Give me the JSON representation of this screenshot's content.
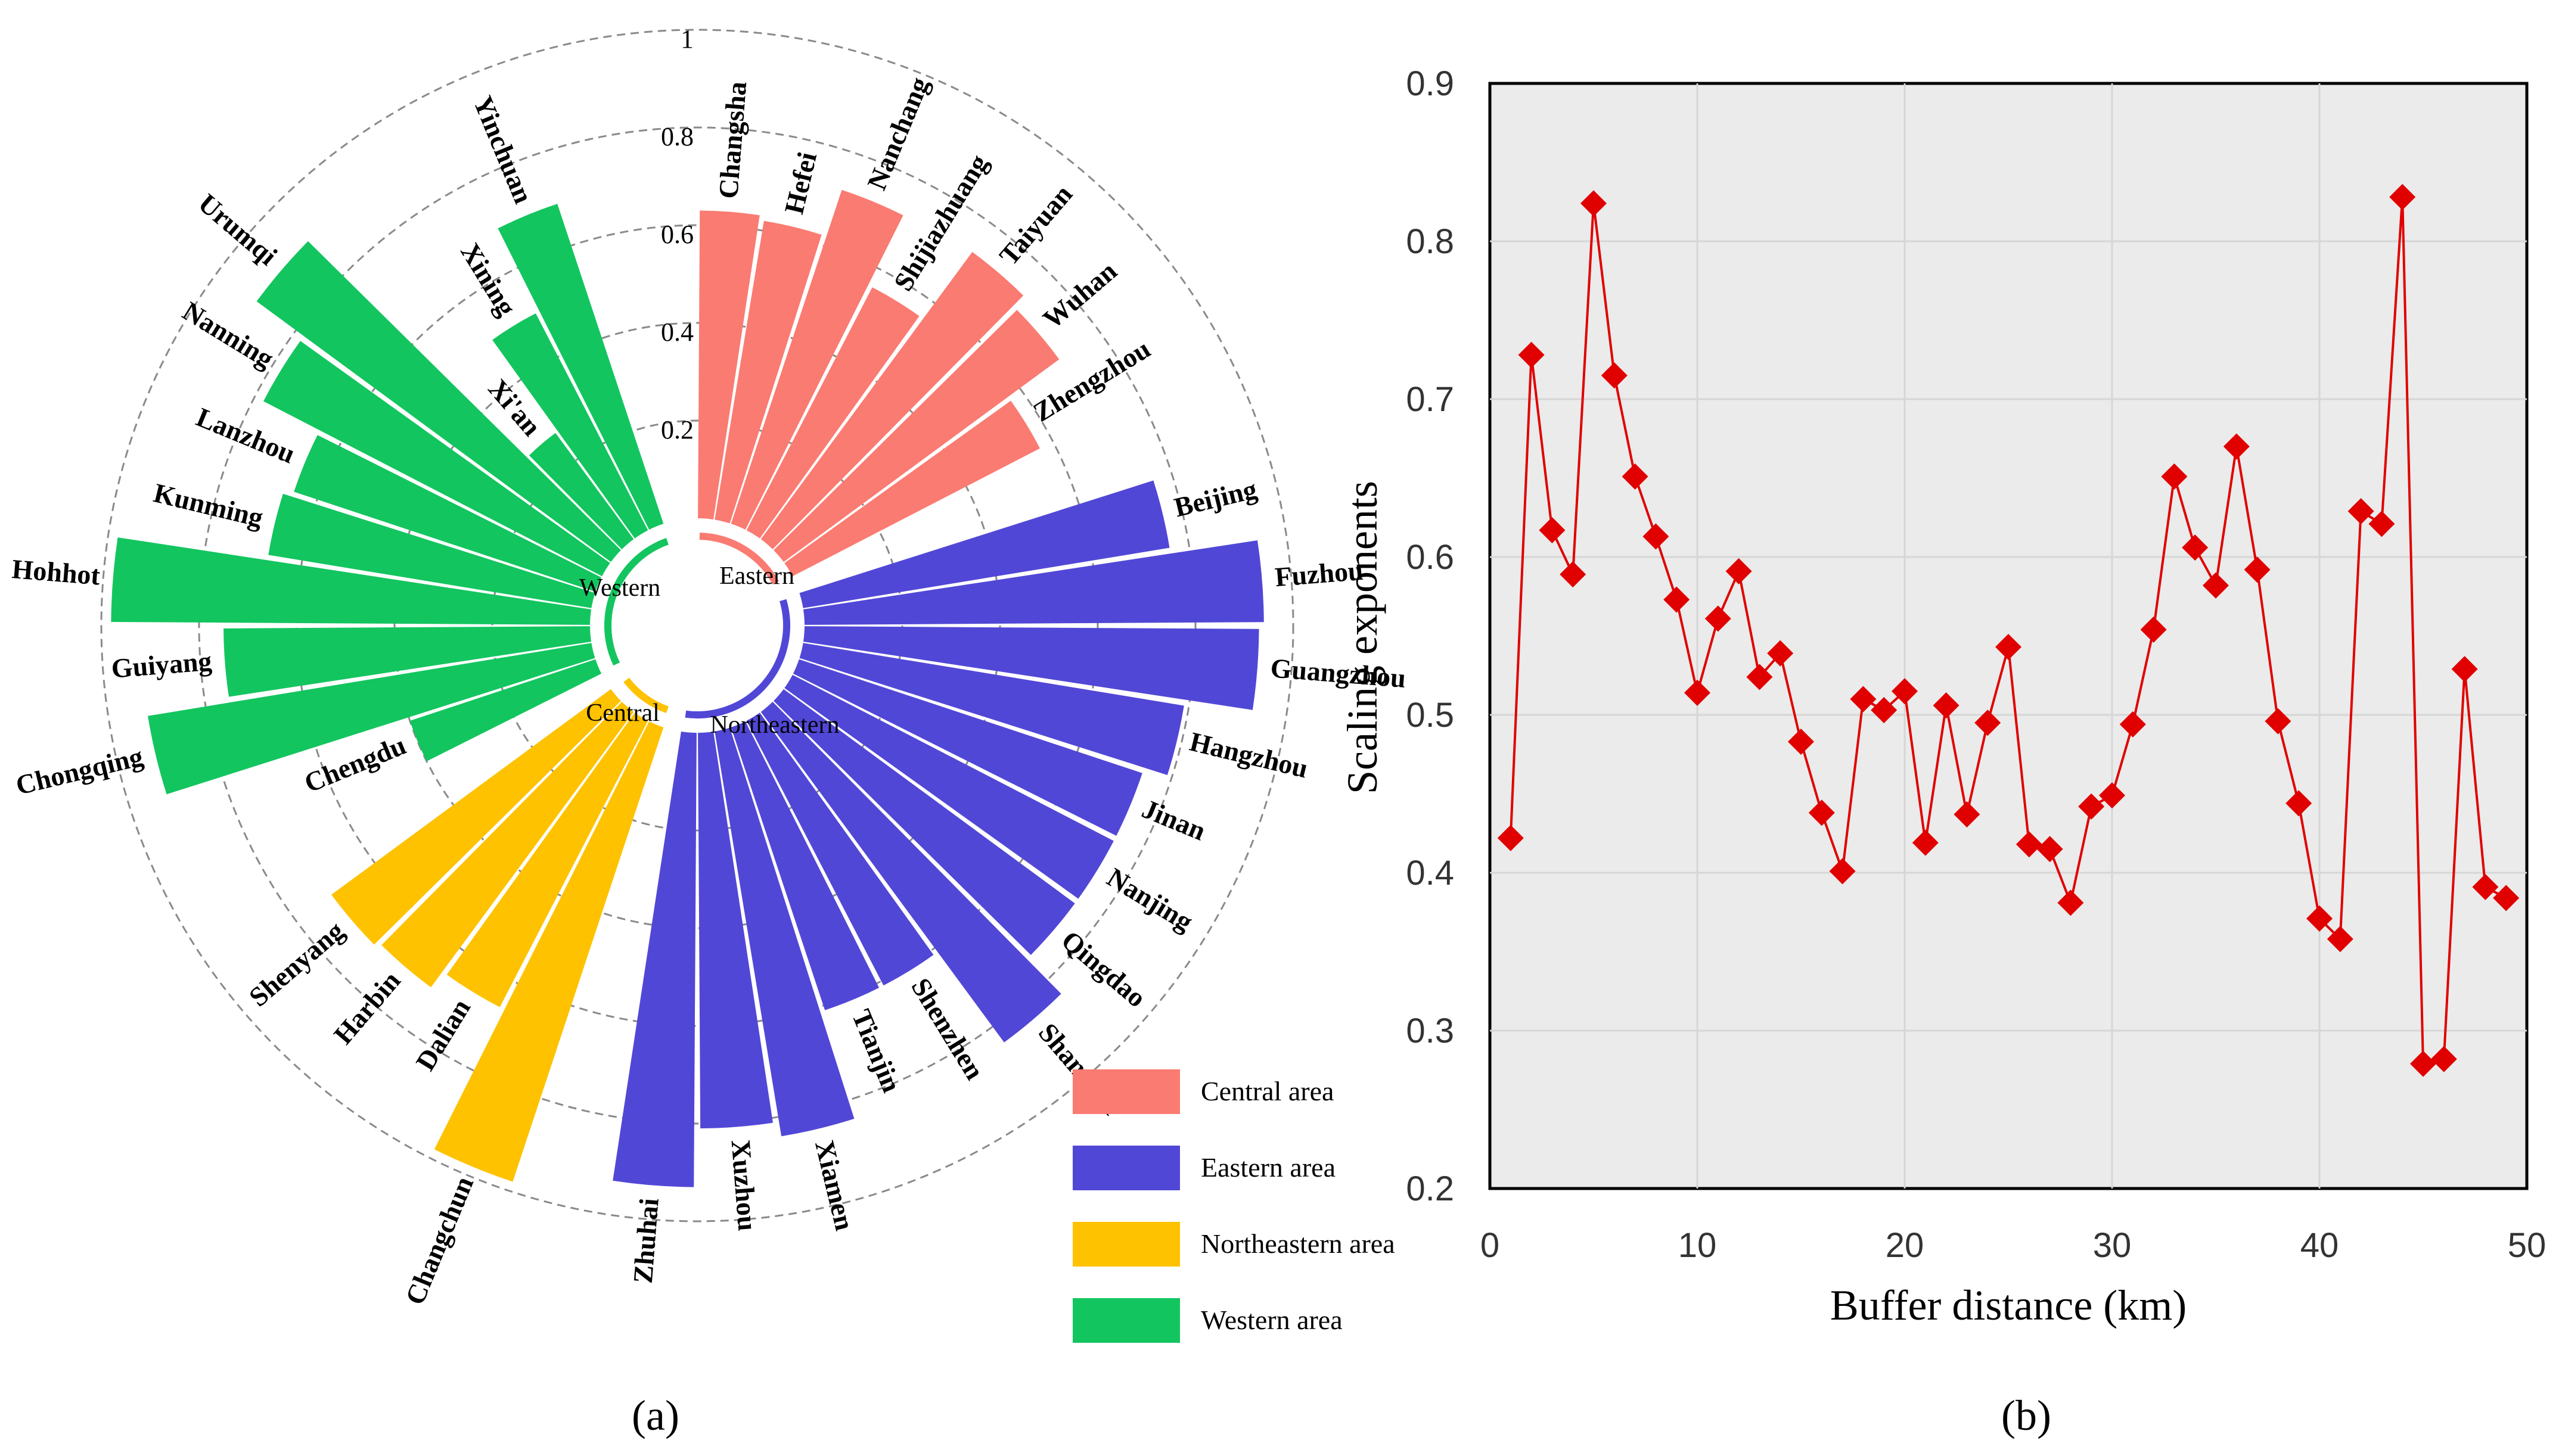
{
  "chart_data": [
    {
      "type": "circular-bar",
      "panel_label": "(a)",
      "rlim": [
        0,
        1
      ],
      "ring_ticks": [
        "0.2",
        "0.4",
        "0.6",
        "0.8",
        "1"
      ],
      "regions": [
        {
          "key": "Central",
          "label": "Eastern",
          "legend": "Central area",
          "color": "#FA7B72",
          "cities": [
            {
              "name": "Changsha",
              "value": 0.63
            },
            {
              "name": "Hefei",
              "value": 0.62
            },
            {
              "name": "Nanchang",
              "value": 0.72
            },
            {
              "name": "Shijiazhuang",
              "value": 0.56
            },
            {
              "name": "Taiyuan",
              "value": 0.73
            },
            {
              "name": "Wuhan",
              "value": 0.7
            },
            {
              "name": "Zhengzhou",
              "value": 0.57
            }
          ]
        },
        {
          "key": "Eastern",
          "label": "Northeastern",
          "legend": "Eastern area",
          "color": "#5147D6",
          "cities": [
            {
              "name": "Beijing",
              "value": 0.76
            },
            {
              "name": "Fuzhou",
              "value": 0.94
            },
            {
              "name": "Guangzhou",
              "value": 0.93
            },
            {
              "name": "Hangzhou",
              "value": 0.79
            },
            {
              "name": "Jinan",
              "value": 0.74
            },
            {
              "name": "Nanjing",
              "value": 0.74
            },
            {
              "name": "Qingdao",
              "value": 0.74
            },
            {
              "name": "Shanghai",
              "value": 0.84
            },
            {
              "name": "Shenzhen",
              "value": 0.61
            },
            {
              "name": "Tianjin",
              "value": 0.61
            },
            {
              "name": "Xiamen",
              "value": 0.84
            },
            {
              "name": "Xuzhou",
              "value": 0.81
            },
            {
              "name": "Zhuhai",
              "value": 0.93
            }
          ]
        },
        {
          "key": "Northeastern",
          "label": "Central",
          "legend": "Northeastern area",
          "color": "#FEC200",
          "cities": [
            {
              "name": "Changchun",
              "value": 0.98
            },
            {
              "name": "Dalian",
              "value": 0.66
            },
            {
              "name": "Harbin",
              "value": 0.7
            },
            {
              "name": "Shenyang",
              "value": 0.71
            }
          ]
        },
        {
          "key": "Western",
          "label": "Western",
          "legend": "Western area",
          "color": "#13C55F",
          "cities": [
            {
              "name": "Chengdu",
              "value": 0.4
            },
            {
              "name": "Chongqing",
              "value": 0.92
            },
            {
              "name": "Guiyang",
              "value": 0.75
            },
            {
              "name": "Hohhot",
              "value": 0.98
            },
            {
              "name": "Kunming",
              "value": 0.67
            },
            {
              "name": "Lanzhou",
              "value": 0.65
            },
            {
              "name": "Nanning",
              "value": 0.78
            },
            {
              "name": "Urumqi",
              "value": 0.9
            },
            {
              "name": "Xi'an",
              "value": 0.27
            },
            {
              "name": "Xining",
              "value": 0.5
            },
            {
              "name": "Yinchuan",
              "value": 0.69
            }
          ]
        }
      ]
    },
    {
      "type": "line",
      "panel_label": "(b)",
      "xlabel": "Buffer distance (km)",
      "ylabel": "Scaling exponents",
      "xlim": [
        0,
        50
      ],
      "ylim": [
        0.2,
        0.9
      ],
      "xticks": [
        "0",
        "10",
        "20",
        "30",
        "40",
        "50"
      ],
      "yticks": [
        "0.2",
        "0.3",
        "0.4",
        "0.5",
        "0.6",
        "0.7",
        "0.8",
        "0.9"
      ],
      "color": "#E00000",
      "marker": "diamond",
      "x": [
        1,
        2,
        3,
        4,
        5,
        6,
        7,
        8,
        9,
        10,
        11,
        12,
        13,
        14,
        15,
        16,
        17,
        18,
        19,
        20,
        21,
        22,
        23,
        24,
        25,
        26,
        27,
        28,
        29,
        30,
        31,
        32,
        33,
        34,
        35,
        36,
        37,
        38,
        39,
        40,
        41,
        42,
        43,
        44,
        45,
        46,
        47,
        48,
        49
      ],
      "y": [
        0.422,
        0.728,
        0.617,
        0.589,
        0.824,
        0.715,
        0.651,
        0.613,
        0.573,
        0.514,
        0.561,
        0.591,
        0.524,
        0.539,
        0.483,
        0.438,
        0.401,
        0.51,
        0.503,
        0.515,
        0.419,
        0.506,
        0.437,
        0.495,
        0.543,
        0.418,
        0.415,
        0.381,
        0.442,
        0.449,
        0.494,
        0.554,
        0.651,
        0.606,
        0.582,
        0.67,
        0.592,
        0.496,
        0.444,
        0.371,
        0.358,
        0.629,
        0.621,
        0.828,
        0.279,
        0.282,
        0.529,
        0.391,
        0.384
      ]
    }
  ]
}
